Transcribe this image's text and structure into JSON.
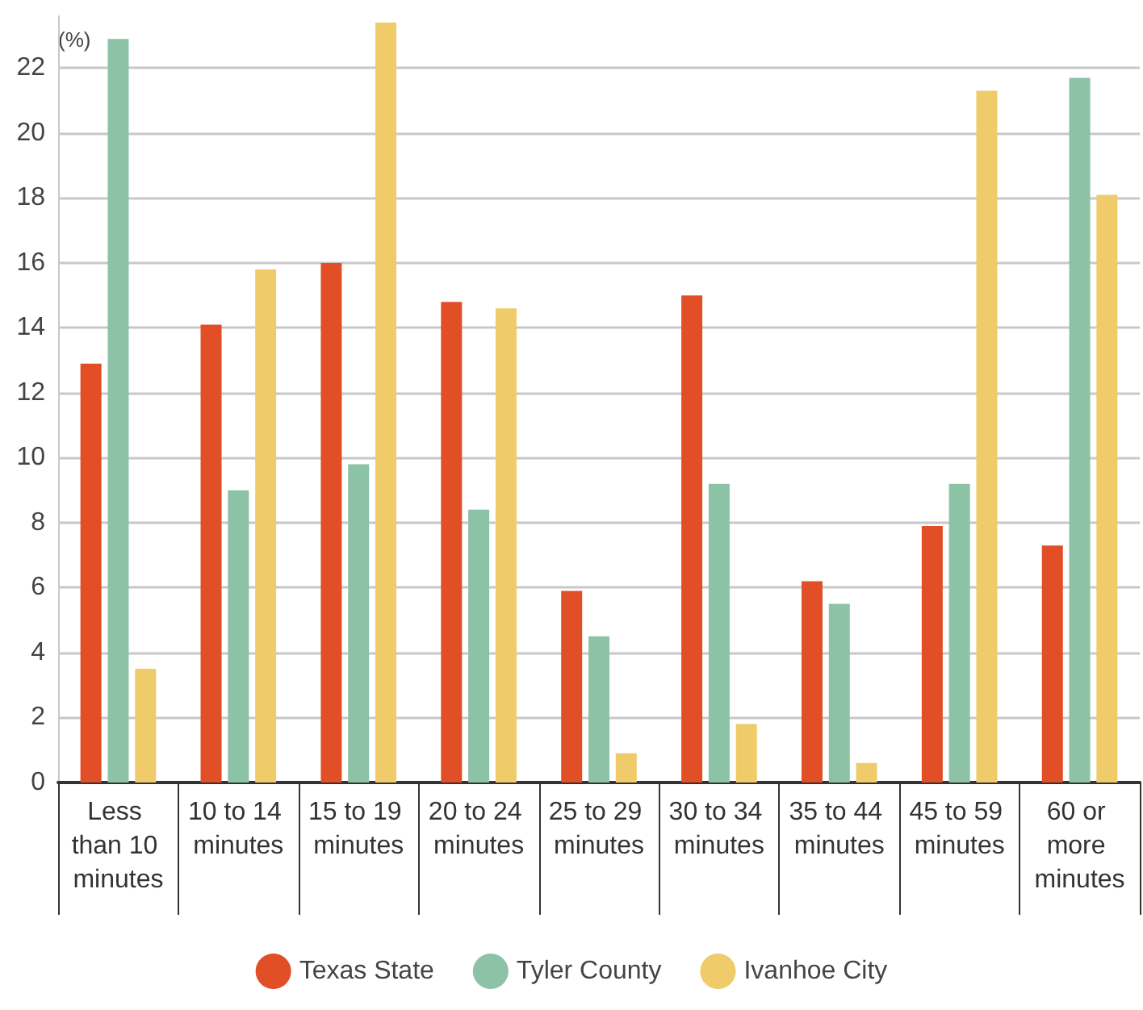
{
  "chart_data": {
    "type": "bar",
    "ylabel": "(%)",
    "categories": [
      "Less than 10 minutes",
      "10 to 14 minutes",
      "15 to 19 minutes",
      "20 to 24 minutes",
      "25 to 29 minutes",
      "30 to 34 minutes",
      "35 to 44 minutes",
      "45 to 59 minutes",
      "60 or more minutes"
    ],
    "series": [
      {
        "name": "Texas State",
        "color": "#e24e26",
        "values": [
          12.9,
          14.1,
          16.0,
          14.8,
          5.9,
          15.0,
          6.2,
          7.9,
          7.3
        ]
      },
      {
        "name": "Tyler County",
        "color": "#8cc3a6",
        "values": [
          22.9,
          9.0,
          9.8,
          8.4,
          4.5,
          9.2,
          5.5,
          9.2,
          21.7
        ]
      },
      {
        "name": "Ivanhoe City",
        "color": "#efcb69",
        "values": [
          3.5,
          15.8,
          23.4,
          14.6,
          0.9,
          1.8,
          0.6,
          21.3,
          18.1
        ]
      }
    ],
    "ylim": [
      0,
      23.6
    ],
    "yticks": [
      0,
      2,
      4,
      6,
      8,
      10,
      12,
      14,
      16,
      18,
      20,
      22
    ],
    "grid": "y",
    "legend": "bottom"
  }
}
